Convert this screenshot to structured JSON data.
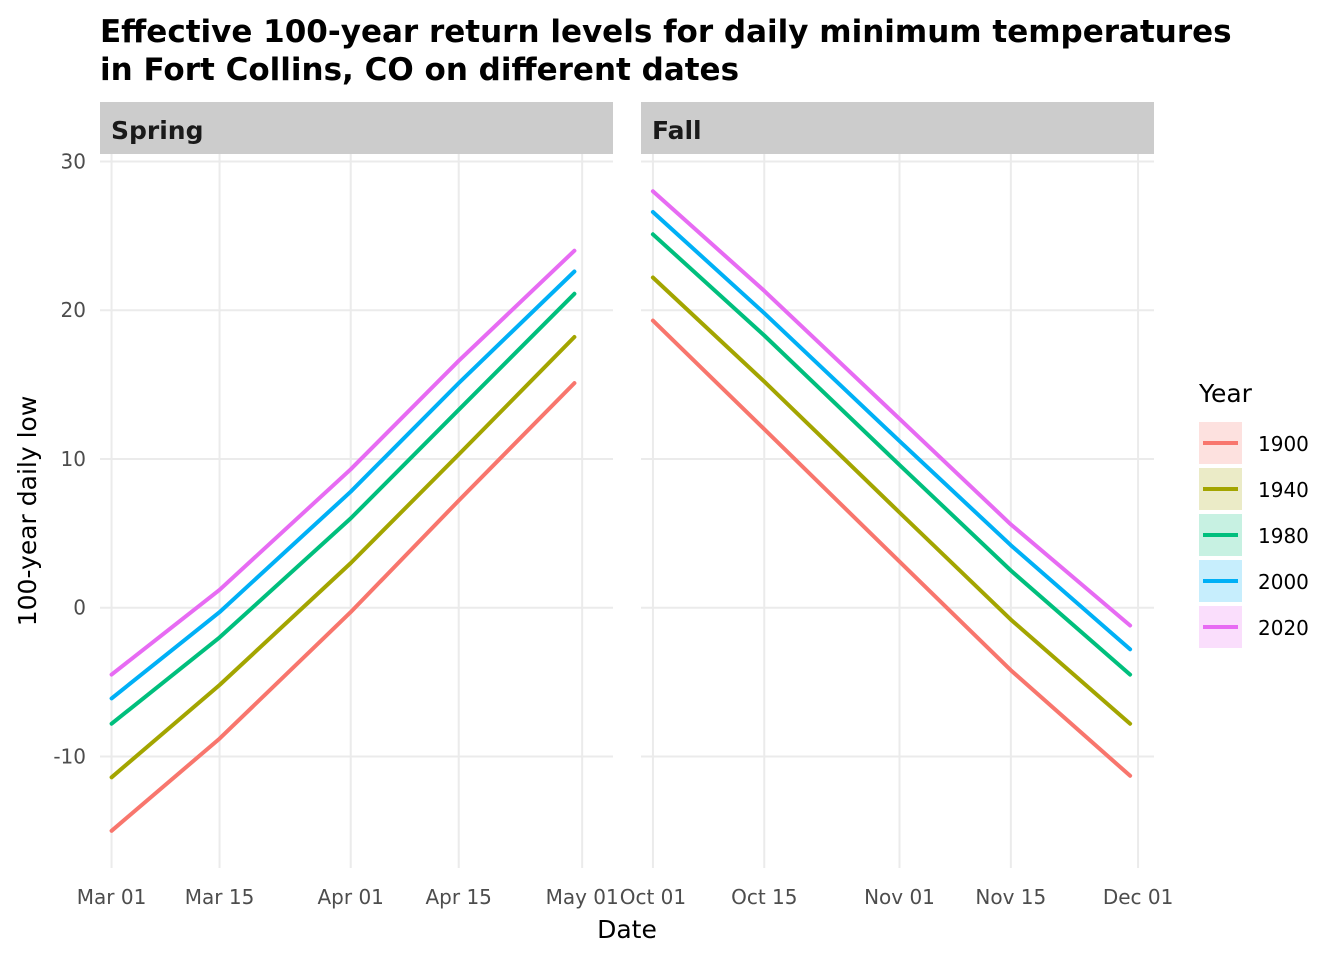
{
  "chart_data": {
    "type": "line",
    "title": "Effective 100-year return levels for daily minimum temperatures",
    "title_line2": "in Fort Collins, CO on different dates",
    "xlabel": "Date",
    "ylabel": "100-year daily low",
    "ylim": [
      -17.5,
      30.5
    ],
    "y_ticks": [
      30,
      20,
      10,
      0,
      -10
    ],
    "y_tick_labels": [
      "30",
      "20",
      "10",
      "0",
      "-10"
    ],
    "grid": true,
    "legend": {
      "title": "Year",
      "placement": "right"
    },
    "series_meta": [
      {
        "name": "1900",
        "color": "#F8766D"
      },
      {
        "name": "1940",
        "color": "#A3A500"
      },
      {
        "name": "1980",
        "color": "#00BF7D"
      },
      {
        "name": "2000",
        "color": "#00B0F6"
      },
      {
        "name": "2020",
        "color": "#E76BF3"
      }
    ],
    "panels": [
      {
        "label": "Spring",
        "xlim": [
          -1.5,
          65
        ],
        "x_ticks": [
          0,
          14,
          31,
          45,
          61
        ],
        "x_tick_labels": [
          "Mar 01",
          "Mar 15",
          "Apr 01",
          "Apr 15",
          "May 01"
        ],
        "x": [
          "Mar 01",
          "Mar 15",
          "Apr 01",
          "Apr 15",
          "Apr 30"
        ],
        "series": [
          {
            "name": "1900",
            "values": [
              -15.0,
              -8.8,
              -0.3,
              7.2,
              15.1
            ]
          },
          {
            "name": "1940",
            "values": [
              -11.4,
              -5.2,
              3.0,
              10.3,
              18.2
            ]
          },
          {
            "name": "1980",
            "values": [
              -7.8,
              -2.0,
              6.0,
              13.3,
              21.1
            ]
          },
          {
            "name": "2000",
            "values": [
              -6.1,
              -0.3,
              7.8,
              15.1,
              22.6
            ]
          },
          {
            "name": "2020",
            "values": [
              -4.5,
              1.2,
              9.3,
              16.6,
              24.0
            ]
          }
        ]
      },
      {
        "label": "Fall",
        "xlim": [
          -1.5,
          63
        ],
        "x_ticks": [
          0,
          14,
          31,
          45,
          61
        ],
        "x_tick_labels": [
          "Oct 01",
          "Oct 15",
          "Nov 01",
          "Nov 15",
          "Dec 01"
        ],
        "x": [
          "Oct 01",
          "Oct 15",
          "Nov 01",
          "Nov 15",
          "Nov 30"
        ],
        "series": [
          {
            "name": "1900",
            "values": [
              19.3,
              12.0,
              3.1,
              -4.2,
              -11.3
            ]
          },
          {
            "name": "1940",
            "values": [
              22.2,
              15.2,
              6.4,
              -0.8,
              -7.8
            ]
          },
          {
            "name": "1980",
            "values": [
              25.1,
              18.3,
              9.6,
              2.5,
              -4.5
            ]
          },
          {
            "name": "2000",
            "values": [
              26.6,
              19.8,
              11.2,
              4.2,
              -2.8
            ]
          },
          {
            "name": "2020",
            "values": [
              28.0,
              21.3,
              12.7,
              5.6,
              -1.2
            ]
          }
        ]
      }
    ]
  }
}
